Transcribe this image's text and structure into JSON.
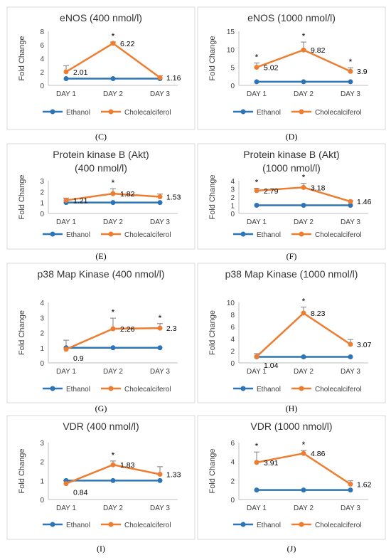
{
  "colors": {
    "ethanol": "#2E75B6",
    "cholecalciferol": "#ED7D31"
  },
  "legend_labels": [
    "Ethanol",
    "Cholecalciferol"
  ],
  "chart_data": [
    {
      "type": "line",
      "panel_letter": "",
      "title": "eNOS (400 nmol/l)",
      "ylabel": "Fold Change",
      "xlabel": "",
      "categories": [
        "DAY 1",
        "DAY 2",
        "DAY 3"
      ],
      "ylim": [
        0,
        8
      ],
      "yticks": [
        0,
        2,
        4,
        6,
        8
      ],
      "series": [
        {
          "name": "Ethanol",
          "values": [
            1,
            1,
            1
          ]
        },
        {
          "name": "Cholecalciferol",
          "values": [
            2.01,
            6.22,
            1.16
          ],
          "errors": [
            0.9,
            0.2,
            0.25
          ]
        }
      ],
      "data_labels": [
        "2.01",
        "6.22",
        "1.16"
      ],
      "significant": [
        false,
        true,
        false
      ],
      "legend": "bottom",
      "grid": false
    },
    {
      "type": "line",
      "panel_letter": "",
      "title": "eNOS (1000 nmol/l)",
      "ylabel": "Fold Change",
      "xlabel": "",
      "categories": [
        "DAY 1",
        "DAY 2",
        "DAY 3"
      ],
      "ylim": [
        0,
        15
      ],
      "yticks": [
        0,
        5,
        10,
        15
      ],
      "series": [
        {
          "name": "Ethanol",
          "values": [
            1,
            1,
            1
          ]
        },
        {
          "name": "Cholecalciferol",
          "values": [
            5.02,
            9.82,
            3.9
          ],
          "errors": [
            1.2,
            2.2,
            1.0
          ]
        }
      ],
      "data_labels": [
        "5.02",
        "9.82",
        "3.9"
      ],
      "significant": [
        true,
        true,
        true
      ],
      "legend": "bottom",
      "grid": false
    },
    {
      "type": "line",
      "panel_letter": "(C)",
      "title": "Protein kinase B (Akt)|(400 nmol/l)",
      "ylabel": "Fold Change",
      "xlabel": "",
      "categories": [
        "DAY 1",
        "DAY 2",
        "DAY 3"
      ],
      "ylim": [
        0,
        3
      ],
      "yticks": [
        0,
        1,
        2,
        3
      ],
      "series": [
        {
          "name": "Ethanol",
          "values": [
            1,
            1,
            1
          ]
        },
        {
          "name": "Cholecalciferol",
          "values": [
            1.21,
            1.82,
            1.53
          ],
          "errors": [
            0.2,
            0.45,
            0.25
          ]
        }
      ],
      "data_labels": [
        "1.21",
        "1.82",
        "1.53"
      ],
      "significant": [
        false,
        true,
        false
      ],
      "legend": "bottom",
      "grid": false
    },
    {
      "type": "line",
      "panel_letter": "(D)",
      "title": "Protein kinase B (Akt)|(1000 nmol/l)",
      "ylabel": "Fold Change",
      "xlabel": "",
      "categories": [
        "DAY 1",
        "DAY 2",
        "DAY 3"
      ],
      "ylim": [
        0,
        4
      ],
      "yticks": [
        0,
        1,
        2,
        3,
        4
      ],
      "series": [
        {
          "name": "Ethanol",
          "values": [
            1,
            1,
            1
          ]
        },
        {
          "name": "Cholecalciferol",
          "values": [
            2.79,
            3.18,
            1.46
          ],
          "errors": [
            0.3,
            0.5,
            0.1
          ]
        }
      ],
      "data_labels": [
        "2.79",
        "3.18",
        "1.46"
      ],
      "significant": [
        true,
        true,
        false
      ],
      "legend": "bottom",
      "grid": false
    },
    {
      "type": "line",
      "panel_letter": "(E)",
      "title": "p38 Map Kinase (400 nmol/l)",
      "ylabel": "Fold Change",
      "xlabel": "",
      "categories": [
        "DAY 1",
        "DAY 2",
        "DAY 3"
      ],
      "ylim": [
        0,
        4
      ],
      "yticks": [
        0,
        1,
        2,
        3,
        4
      ],
      "series": [
        {
          "name": "Ethanol",
          "values": [
            1,
            1,
            1
          ]
        },
        {
          "name": "Cholecalciferol",
          "values": [
            0.9,
            2.26,
            2.3
          ],
          "errors": [
            0.6,
            0.7,
            0.3
          ]
        }
      ],
      "data_labels": [
        "0.9",
        "2.26",
        "2.3"
      ],
      "significant": [
        false,
        true,
        true
      ],
      "legend": "bottom",
      "grid": false
    },
    {
      "type": "line",
      "panel_letter": "(F)",
      "title": "p38 Map Kinase (1000 nmol/l)",
      "ylabel": "Fold Change",
      "xlabel": "",
      "categories": [
        "DAY 1",
        "DAY 2",
        "DAY 3"
      ],
      "ylim": [
        0,
        10
      ],
      "yticks": [
        0,
        2,
        4,
        6,
        8,
        10
      ],
      "series": [
        {
          "name": "Ethanol",
          "values": [
            1,
            1,
            1
          ]
        },
        {
          "name": "Cholecalciferol",
          "values": [
            1.04,
            8.23,
            3.07
          ],
          "errors": [
            0.5,
            1.0,
            0.8
          ]
        }
      ],
      "data_labels": [
        "1.04",
        "8.23",
        "3.07"
      ],
      "significant": [
        false,
        true,
        false
      ],
      "legend": "bottom",
      "grid": false
    },
    {
      "type": "line",
      "panel_letter": "(G)",
      "title": "VDR (400 nmol/l)",
      "ylabel": "Fold Change",
      "xlabel": "",
      "categories": [
        "DAY 1",
        "DAY 2",
        "DAY 3"
      ],
      "ylim": [
        0,
        3
      ],
      "yticks": [
        0,
        1,
        2,
        3
      ],
      "series": [
        {
          "name": "Ethanol",
          "values": [
            1,
            1,
            1
          ]
        },
        {
          "name": "Cholecalciferol",
          "values": [
            0.84,
            1.83,
            1.33
          ],
          "errors": [
            0.15,
            0.2,
            0.4
          ]
        }
      ],
      "data_labels": [
        "0.84",
        "1.83",
        "1.33"
      ],
      "significant": [
        false,
        true,
        false
      ],
      "legend": "bottom",
      "grid": false
    },
    {
      "type": "line",
      "panel_letter": "(H)",
      "title": "VDR (1000 nmol/l)",
      "ylabel": "Fold Change",
      "xlabel": "",
      "categories": [
        "DAY 1",
        "DAY 2",
        "DAY 3"
      ],
      "ylim": [
        0,
        6
      ],
      "yticks": [
        0,
        2,
        4,
        6
      ],
      "series": [
        {
          "name": "Ethanol",
          "values": [
            1,
            1,
            1
          ]
        },
        {
          "name": "Cholecalciferol",
          "values": [
            3.91,
            4.86,
            1.62
          ],
          "errors": [
            1.1,
            0.3,
            0.35
          ]
        }
      ],
      "data_labels": [
        "3.91",
        "4.86",
        "1.62"
      ],
      "significant": [
        true,
        true,
        false
      ],
      "legend": "bottom",
      "grid": false
    }
  ],
  "trailing_panel_letters": [
    "(I)",
    "(J)"
  ]
}
